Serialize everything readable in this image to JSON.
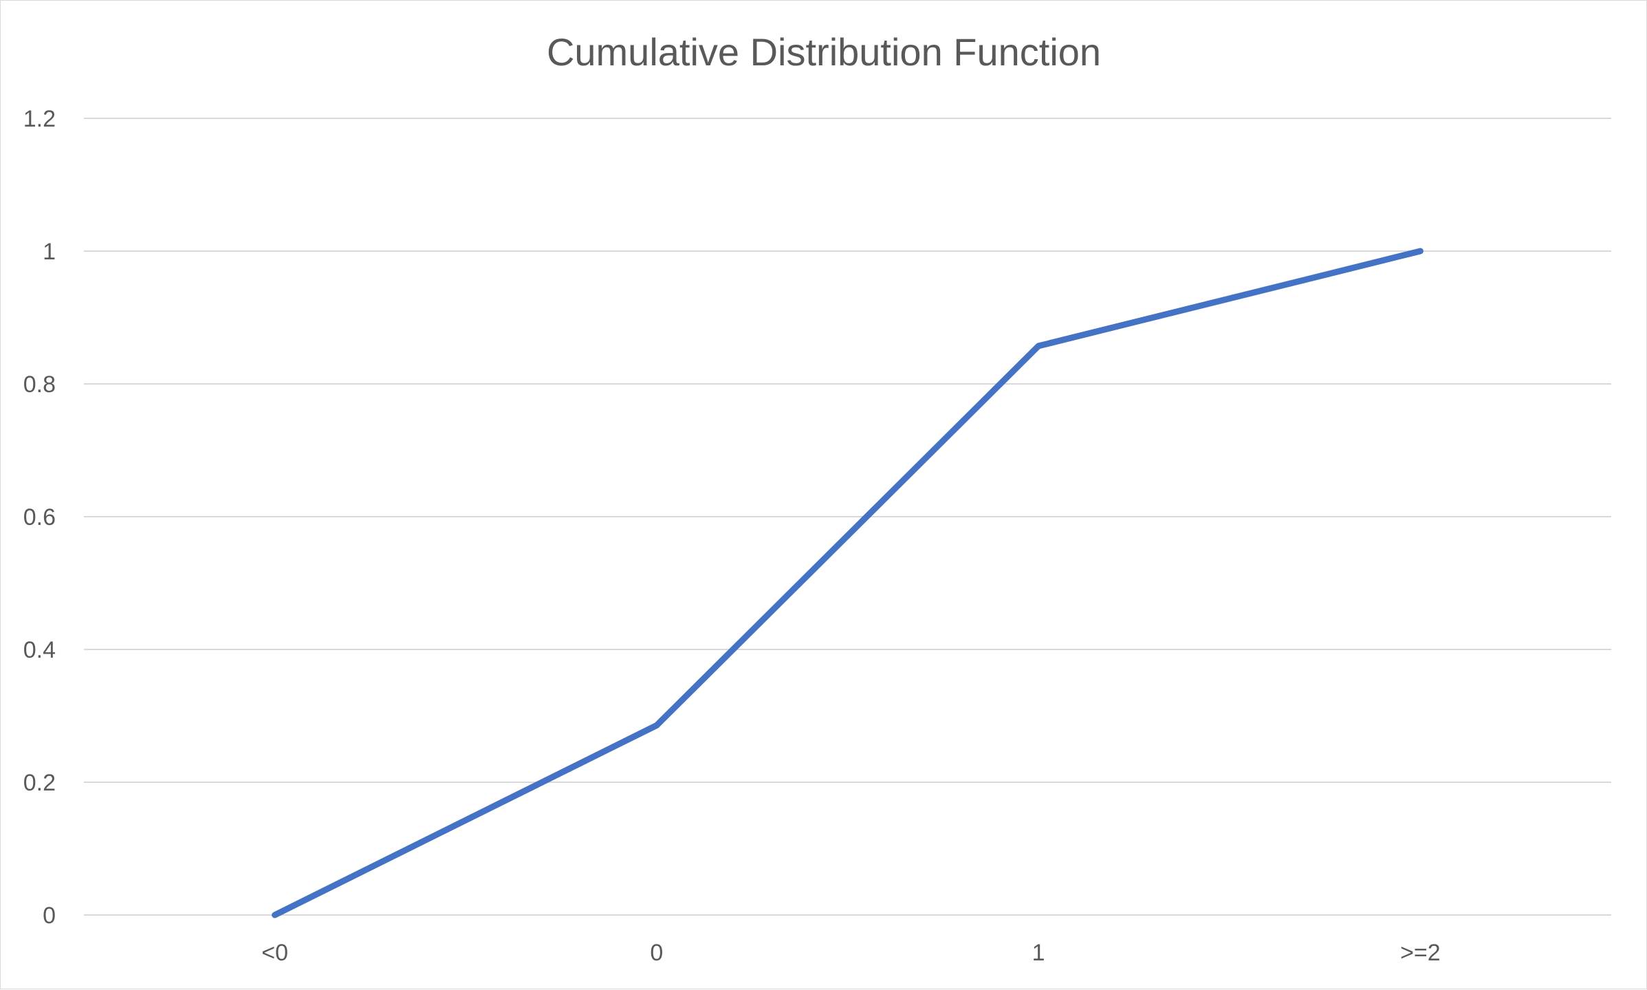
{
  "chart_data": {
    "type": "line",
    "title": "Cumulative Distribution Function",
    "xlabel": "",
    "ylabel": "",
    "categories": [
      "<0",
      "0",
      "1",
      ">=2"
    ],
    "series": [
      {
        "values": [
          0,
          0.2857,
          0.8571,
          1
        ],
        "color": "#4472c4"
      }
    ],
    "ylim": [
      0,
      1.2
    ],
    "yticks": [
      0,
      0.2,
      0.4,
      0.6,
      0.8,
      1,
      1.2
    ],
    "grid": true,
    "legend": "none"
  }
}
